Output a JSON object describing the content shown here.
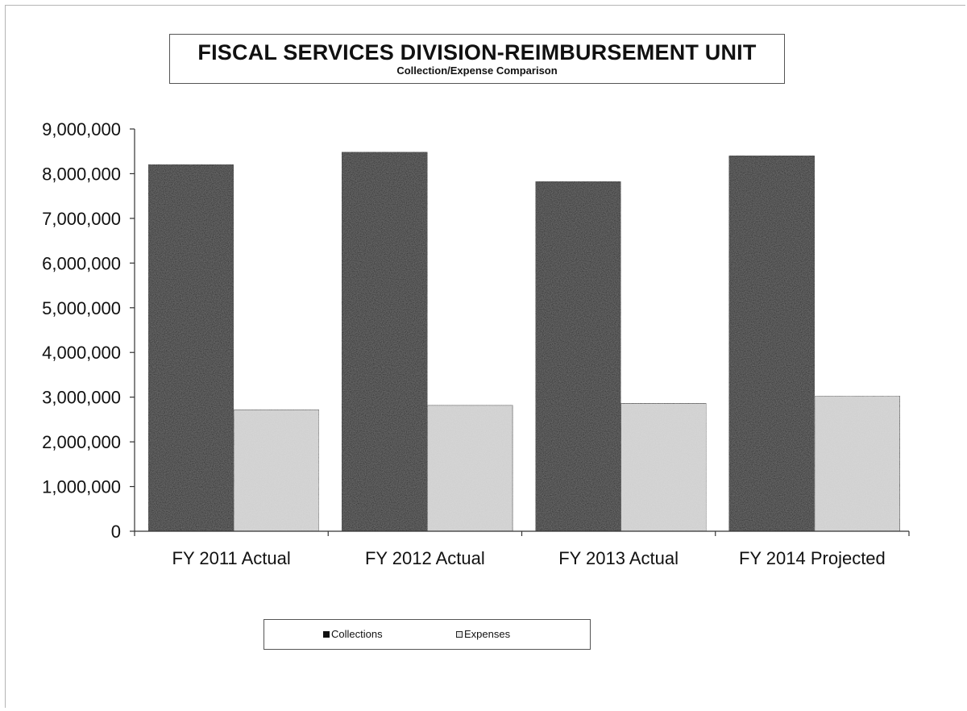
{
  "chart_data": {
    "type": "bar",
    "title": "FISCAL SERVICES DIVISION-REIMBURSEMENT UNIT",
    "subtitle": "Collection/Expense Comparison",
    "categories": [
      "FY 2011 Actual",
      "FY 2012 Actual",
      "FY 2013 Actual",
      "FY 2014 Projected"
    ],
    "series": [
      {
        "name": "Collections",
        "values": [
          8200000,
          8480000,
          7820000,
          8400000
        ],
        "color": "#1a1a1a"
      },
      {
        "name": "Expenses",
        "values": [
          2720000,
          2820000,
          2860000,
          3030000
        ],
        "color": "#d9d9d9"
      }
    ],
    "yticks": [
      "0",
      "1,000,000",
      "2,000,000",
      "3,000,000",
      "4,000,000",
      "5,000,000",
      "6,000,000",
      "7,000,000",
      "8,000,000",
      "9,000,000"
    ],
    "ylim": [
      0,
      9000000
    ],
    "xlabel": "",
    "ylabel": "",
    "grid": false,
    "legend_position": "bottom"
  },
  "legend": {
    "collections_label": "Collections",
    "expenses_label": "Expenses"
  }
}
